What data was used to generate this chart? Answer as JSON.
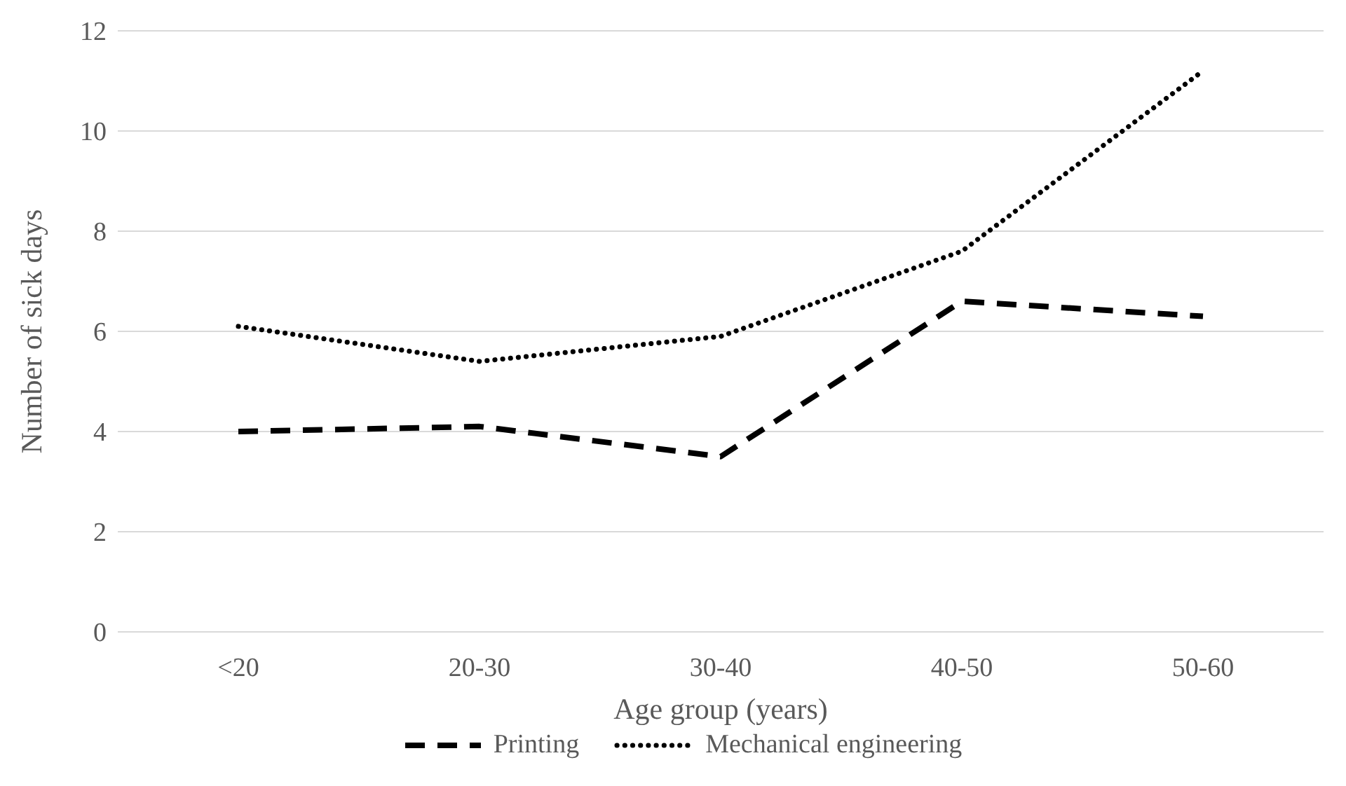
{
  "chart_data": {
    "type": "line",
    "xlabel": "Age group (years)",
    "ylabel": "Number of sick days",
    "categories": [
      "<20",
      "20-30",
      "30-40",
      "40-50",
      "50-60"
    ],
    "series": [
      {
        "name": "Printing",
        "color": "#000000",
        "line_style": "dashed",
        "values": [
          4.0,
          4.1,
          3.5,
          6.6,
          6.3
        ]
      },
      {
        "name": "Mechanical engineering",
        "color": "#000000",
        "line_style": "dotted",
        "values": [
          6.1,
          5.4,
          5.9,
          7.6,
          11.2
        ]
      }
    ],
    "ylim": [
      0,
      12
    ],
    "yticks": [
      0,
      2,
      4,
      6,
      8,
      10,
      12
    ],
    "grid": "y",
    "legend": "bottom",
    "marker": "none"
  }
}
